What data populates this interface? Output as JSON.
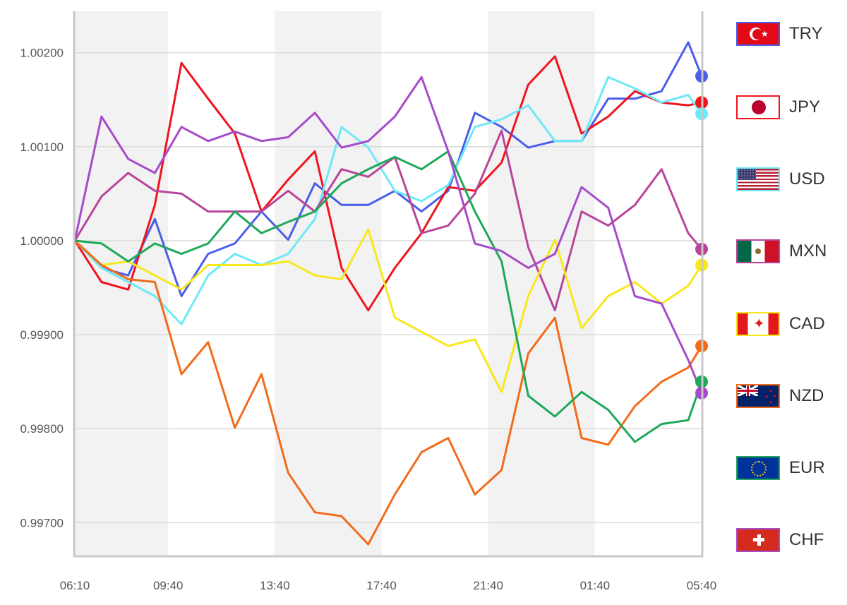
{
  "chart_data": {
    "type": "line",
    "x": [
      "06:10",
      "07:10",
      "08:10",
      "09:10",
      "10:10",
      "11:10",
      "12:10",
      "13:10",
      "14:10",
      "15:10",
      "16:10",
      "17:10",
      "18:10",
      "19:10",
      "20:10",
      "21:10",
      "22:10",
      "23:10",
      "00:10",
      "01:10",
      "02:10",
      "03:10",
      "04:10",
      "05:10",
      "05:40"
    ],
    "x_ticks": [
      "06:10",
      "09:40",
      "13:40",
      "17:40",
      "21:40",
      "01:40",
      "05:40"
    ],
    "y_ticks": [
      "1.00200",
      "1.00100",
      "1.00000",
      "0.99900",
      "0.99800",
      "0.99700"
    ],
    "y_tick_values": [
      1.002,
      1.001,
      1.0,
      0.999,
      0.998,
      0.997
    ],
    "ylim": [
      0.99665,
      1.00244
    ],
    "grid": "horizontal",
    "shaded_bands": [
      [
        "06:10",
        "09:40"
      ],
      [
        "13:40",
        "17:40"
      ],
      [
        "21:40",
        "01:40"
      ]
    ],
    "band_color": "#f2f2f2",
    "legend_position": "right",
    "series": [
      {
        "name": "TRY",
        "color": "#4a5ee8",
        "values": [
          1.0,
          0.99971,
          0.99963,
          1.00023,
          0.99941,
          0.99986,
          0.99997,
          1.00031,
          1.00001,
          1.00061,
          1.00038,
          1.00038,
          1.00053,
          1.00031,
          1.00053,
          1.00136,
          1.00121,
          1.00099,
          1.00106,
          1.00106,
          1.00151,
          1.00151,
          1.00159,
          1.00211,
          1.00175
        ]
      },
      {
        "name": "JPY",
        "color": "#f0141e",
        "values": [
          1.0,
          0.99956,
          0.99948,
          1.00038,
          1.00189,
          1.00151,
          1.00114,
          1.00031,
          1.00065,
          1.00095,
          0.99971,
          0.99926,
          0.99971,
          1.00008,
          1.00057,
          1.00053,
          1.00083,
          1.00166,
          1.00196,
          1.00114,
          1.00132,
          1.00159,
          1.00147,
          1.00144,
          1.00147
        ]
      },
      {
        "name": "USD",
        "color": "#6ee9f7",
        "values": [
          1.0,
          0.99971,
          0.99956,
          0.99941,
          0.99911,
          0.99963,
          0.99986,
          0.99974,
          0.99986,
          1.00023,
          1.00121,
          1.00099,
          1.00053,
          1.00042,
          1.00059,
          1.00121,
          1.00129,
          1.00144,
          1.00106,
          1.00106,
          1.00174,
          1.00162,
          1.00147,
          1.00155,
          1.00135
        ]
      },
      {
        "name": "MXN",
        "color": "#b8459a",
        "values": [
          1.0,
          1.00047,
          1.00072,
          1.00053,
          1.0005,
          1.00031,
          1.00031,
          1.00031,
          1.00053,
          1.00031,
          1.00076,
          1.00068,
          1.00089,
          1.00008,
          1.00016,
          1.0005,
          1.00117,
          0.99993,
          0.99926,
          1.00031,
          1.00016,
          1.00038,
          1.00076,
          1.00008,
          0.99991
        ]
      },
      {
        "name": "CAD",
        "color": "#f7e81c",
        "values": [
          1.0,
          0.99974,
          0.99978,
          0.99963,
          0.99948,
          0.99974,
          0.99974,
          0.99974,
          0.99978,
          0.99963,
          0.99959,
          1.00012,
          0.99918,
          0.99903,
          0.99888,
          0.99895,
          0.99839,
          0.99941,
          1.00001,
          0.99907,
          0.99941,
          0.99956,
          0.99933,
          0.99952,
          0.99974
        ]
      },
      {
        "name": "NZD",
        "color": "#f26b1a",
        "values": [
          1.0,
          0.99974,
          0.99959,
          0.99956,
          0.99858,
          0.99892,
          0.99801,
          0.99858,
          0.99753,
          0.99711,
          0.99707,
          0.99677,
          0.9973,
          0.99775,
          0.9979,
          0.9973,
          0.99756,
          0.9988,
          0.99918,
          0.9979,
          0.99783,
          0.99824,
          0.9985,
          0.99865,
          0.99888
        ]
      },
      {
        "name": "EUR",
        "color": "#1fa85a",
        "values": [
          1.0,
          0.99997,
          0.99978,
          0.99997,
          0.99986,
          0.99997,
          1.00031,
          1.00008,
          1.0002,
          1.00031,
          1.00061,
          1.00076,
          1.00089,
          1.00076,
          1.00095,
          1.00031,
          0.99978,
          0.99835,
          0.99813,
          0.99839,
          0.9982,
          0.99786,
          0.99805,
          0.99809,
          0.9985
        ]
      },
      {
        "name": "CHF",
        "color": "#a64bc9",
        "values": [
          1.0,
          1.00132,
          1.00087,
          1.00072,
          1.00121,
          1.00106,
          1.00116,
          1.00106,
          1.0011,
          1.00136,
          1.00099,
          1.00106,
          1.00132,
          1.00174,
          1.00095,
          0.99997,
          0.99989,
          0.99971,
          0.99986,
          1.00057,
          1.00035,
          0.99941,
          0.99933,
          0.99873,
          0.99838
        ]
      }
    ]
  },
  "legend": {
    "items": [
      {
        "label": "TRY",
        "flag": "turkey-flag",
        "color": "#4a5ee8"
      },
      {
        "label": "JPY",
        "flag": "japan-flag",
        "color": "#f0141e"
      },
      {
        "label": "USD",
        "flag": "usa-flag",
        "color": "#6ee9f7"
      },
      {
        "label": "MXN",
        "flag": "mexico-flag",
        "color": "#b8459a"
      },
      {
        "label": "CAD",
        "flag": "canada-flag",
        "color": "#f7e81c"
      },
      {
        "label": "NZD",
        "flag": "new-zealand-flag",
        "color": "#f26b1a"
      },
      {
        "label": "EUR",
        "flag": "eu-flag",
        "color": "#1fa85a"
      },
      {
        "label": "CHF",
        "flag": "switzerland-flag",
        "color": "#a64bc9"
      }
    ]
  }
}
